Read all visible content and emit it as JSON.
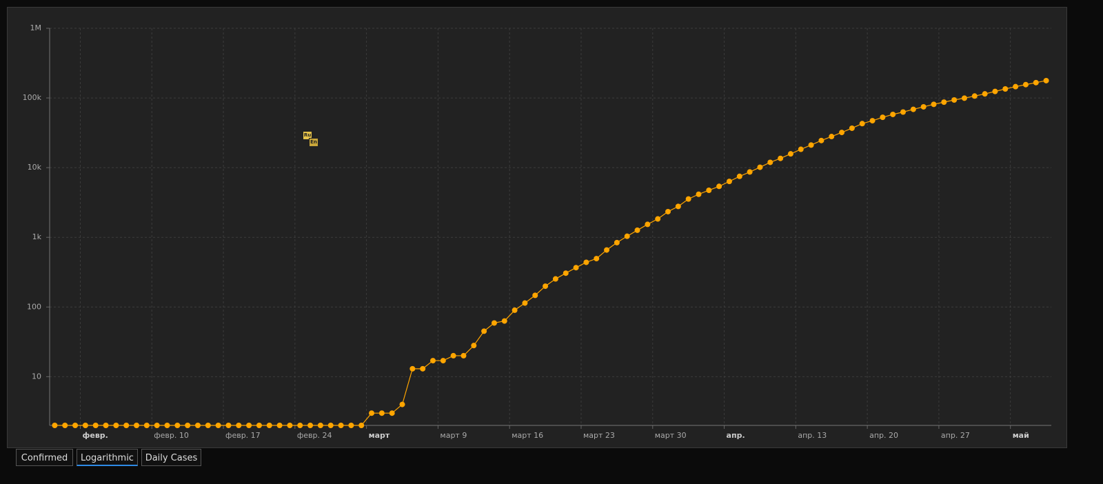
{
  "chart_data": {
    "type": "line",
    "log_scale": true,
    "grid": true,
    "color": "#ffa500",
    "categories": [
      null,
      null,
      null,
      "февр.",
      null,
      null,
      null,
      null,
      null,
      null,
      "февр. 10",
      null,
      null,
      null,
      null,
      null,
      null,
      "февр. 17",
      null,
      null,
      null,
      null,
      null,
      null,
      "февр. 24",
      null,
      null,
      null,
      null,
      null,
      null,
      "март",
      null,
      null,
      null,
      null,
      null,
      null,
      "март 9",
      null,
      null,
      null,
      null,
      null,
      null,
      "март 16",
      null,
      null,
      null,
      null,
      null,
      null,
      "март 23",
      null,
      null,
      null,
      null,
      null,
      null,
      "март 30",
      null,
      null,
      null,
      null,
      null,
      null,
      "апр.",
      null,
      null,
      null,
      null,
      null,
      null,
      "апр. 13",
      null,
      null,
      null,
      null,
      null,
      null,
      "апр. 20",
      null,
      null,
      null,
      null,
      null,
      null,
      "апр. 27",
      null,
      null,
      null,
      null,
      null,
      null,
      "май",
      null,
      null,
      null
    ],
    "values": [
      2,
      2,
      2,
      2,
      2,
      2,
      2,
      2,
      2,
      2,
      2,
      2,
      2,
      2,
      2,
      2,
      2,
      2,
      2,
      2,
      2,
      2,
      2,
      2,
      2,
      2,
      2,
      2,
      2,
      2,
      2,
      3,
      3,
      3,
      4,
      13,
      13,
      17,
      17,
      20,
      20,
      28,
      45,
      59,
      63,
      90,
      114,
      147,
      199,
      253,
      306,
      367,
      438,
      495,
      658,
      840,
      1036,
      1264,
      1534,
      1836,
      2337,
      2777,
      3548,
      4149,
      4731,
      5389,
      6343,
      7497,
      8672,
      10131,
      11917,
      13584,
      15770,
      18328,
      21102,
      24490,
      27938,
      32008,
      36793,
      42853,
      47121,
      52763,
      57999,
      62773,
      68622,
      74588,
      80949,
      87147,
      93558,
      99399,
      106498,
      114431,
      124054,
      134687,
      145268,
      155370,
      165929,
      177160
    ],
    "ylim": [
      2,
      1000000
    ],
    "yticks": [
      10,
      100,
      {
        "value": 1000,
        "label": "1k"
      },
      {
        "value": 10000,
        "label": "10k"
      },
      {
        "value": 100000,
        "label": "100k"
      },
      {
        "value": 1000000,
        "label": "1M"
      }
    ]
  },
  "tabs": [
    "Confirmed",
    "Logarithmic",
    "Daily Cases"
  ],
  "active_tab": 1,
  "language_badges": [
    "Ru",
    "En"
  ]
}
